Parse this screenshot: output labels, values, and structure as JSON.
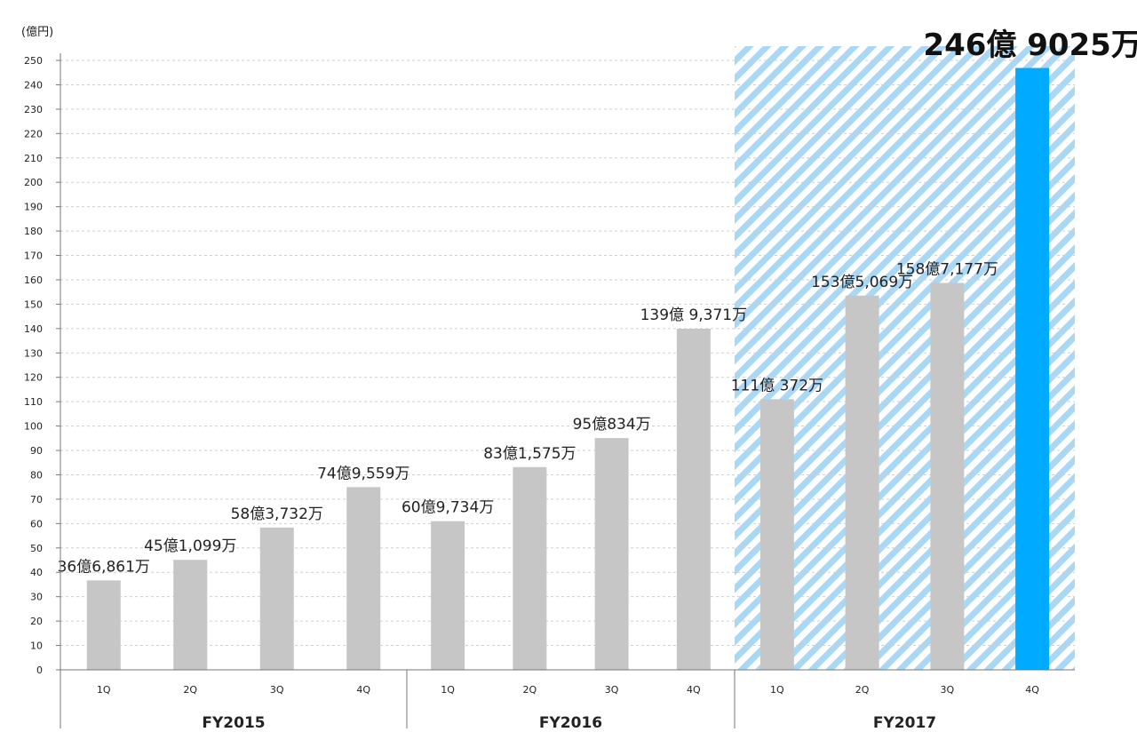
{
  "unit_label": "(億円)",
  "colors": {
    "bar": "#c6c6c6",
    "highlight_bar": "#00aaff",
    "highlight_band": "#a9d8f7"
  },
  "chart_data": {
    "type": "bar",
    "ylim": [
      0,
      250
    ],
    "ytick_step": 10,
    "grid": true,
    "groups": [
      {
        "name": "FY2015",
        "categories": [
          "1Q",
          "2Q",
          "3Q",
          "4Q"
        ]
      },
      {
        "name": "FY2016",
        "categories": [
          "1Q",
          "2Q",
          "3Q",
          "4Q"
        ]
      },
      {
        "name": "FY2017",
        "categories": [
          "1Q",
          "2Q",
          "3Q",
          "4Q"
        ]
      }
    ],
    "values": [
      36.6861,
      45.1099,
      58.3732,
      74.9559,
      60.9734,
      83.1575,
      95.0834,
      139.9371,
      111.0372,
      153.5069,
      158.7177,
      246.9025
    ],
    "data_labels": [
      "36億6,861万",
      "45億1,099万",
      "58億3,732万",
      "74億9,559万",
      "60億9,734万",
      "83億1,575万",
      "95億834万",
      "139億 9,371万",
      "111億 372万",
      "153億5,069万",
      "158億7,177万",
      "246億 9025万"
    ],
    "highlight_group": "FY2017",
    "highlight_index": 11
  }
}
